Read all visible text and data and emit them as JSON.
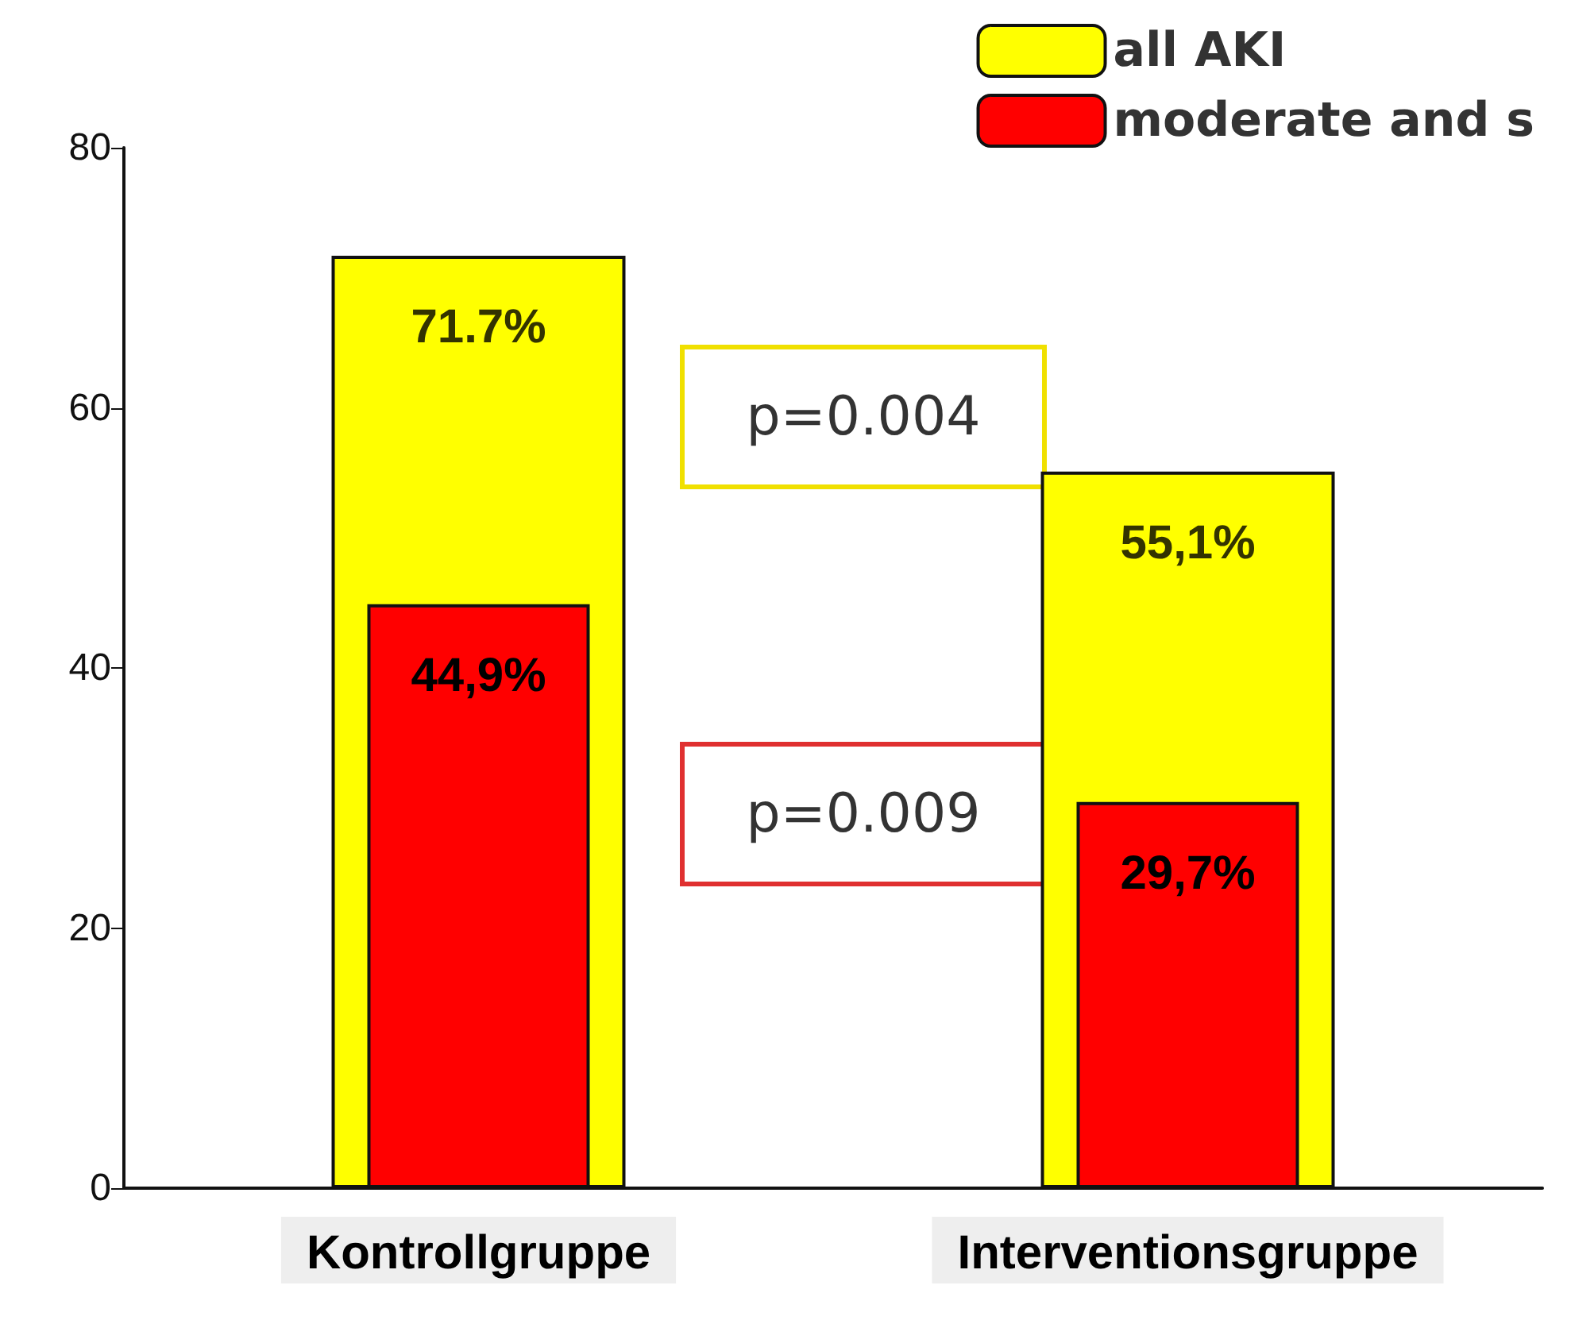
{
  "chart_data": {
    "type": "bar",
    "categories": [
      "Kontrollgruppe",
      "Interventionsgruppe"
    ],
    "series": [
      {
        "name": "all AKI",
        "color": "#ffff00",
        "values": [
          71.7,
          55.1
        ],
        "value_labels": [
          "71.7%",
          "55,1%"
        ]
      },
      {
        "name": "moderate and s",
        "color": "#ff0000",
        "values": [
          44.9,
          29.7
        ],
        "value_labels": [
          "44,9%",
          "29,7%"
        ]
      }
    ],
    "ylim": [
      0,
      80
    ],
    "yticks": [
      0,
      20,
      40,
      60,
      80
    ],
    "grid": false,
    "legend": "top right",
    "annotations": [
      "p=0.004",
      "p=0.009"
    ]
  }
}
